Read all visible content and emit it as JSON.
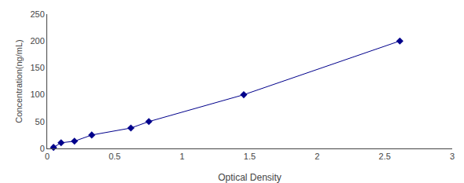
{
  "chart_data": {
    "type": "line",
    "x": [
      0.047,
      0.103,
      0.202,
      0.33,
      0.62,
      0.753,
      1.456,
      2.612
    ],
    "values": [
      2.0,
      10.5,
      13.5,
      25.0,
      38.0,
      50.0,
      100.0,
      200.0
    ],
    "color": "#00008B",
    "marker": "diamond",
    "line_style": "solid",
    "xlabel": "Optical Density",
    "ylabel": "Concentration(ng/mL)",
    "xlim": [
      0,
      3
    ],
    "ylim": [
      0,
      250
    ],
    "xticks": [
      0,
      0.5,
      1,
      1.5,
      2,
      2.5,
      3
    ],
    "yticks": [
      0,
      50,
      100,
      150,
      200,
      250
    ],
    "grid": false
  }
}
